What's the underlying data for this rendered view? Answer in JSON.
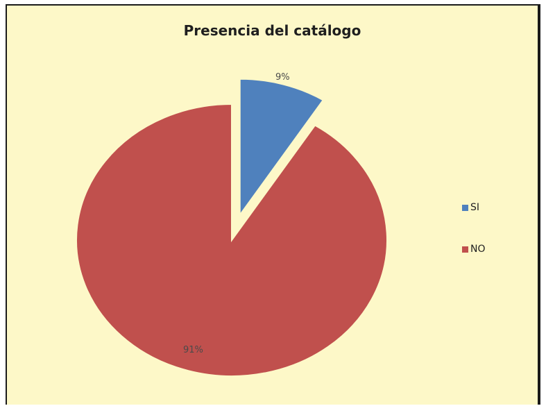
{
  "chart_data": {
    "type": "pie",
    "title": "Presencia del catálogo",
    "categories": [
      "SI",
      "NO"
    ],
    "values": [
      9,
      91
    ],
    "labels": [
      "9%",
      "91%"
    ],
    "colors": [
      "#4f81bd",
      "#c0504d"
    ],
    "exploded": [
      "SI"
    ],
    "legend_position": "right"
  },
  "colors": {
    "background": "#fdf8c8",
    "border": "#1a1a1a"
  }
}
